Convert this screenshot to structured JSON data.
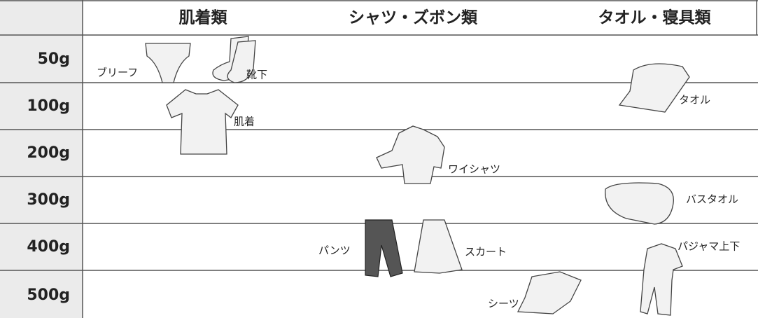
{
  "header": {
    "columns": [
      "肌着類",
      "シャツ・ズボン類",
      "タオル・寝具類"
    ]
  },
  "rows": [
    "50g",
    "100g",
    "200g",
    "300g",
    "400g",
    "500g"
  ],
  "items": [
    {
      "label": "ブリーフ"
    },
    {
      "label": "靴下"
    },
    {
      "label": "肌着"
    },
    {
      "label": "タオル"
    },
    {
      "label": "ワイシャツ"
    },
    {
      "label": "バスタオル"
    },
    {
      "label": "パンツ"
    },
    {
      "label": "スカート"
    },
    {
      "label": "パジャマ上下"
    },
    {
      "label": "シーツ"
    }
  ]
}
